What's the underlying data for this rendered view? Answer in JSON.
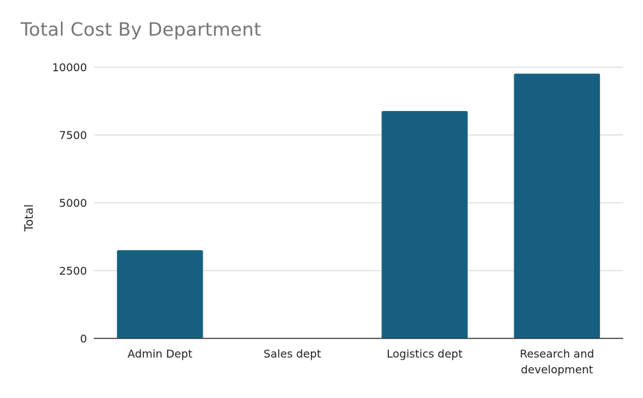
{
  "chart_data": {
    "type": "bar",
    "title": "Total Cost By Department",
    "xlabel": "",
    "ylabel": "Total",
    "categories": [
      "Admin Dept",
      "Sales dept",
      "Logistics dept",
      "Research and development"
    ],
    "category_lines": [
      [
        "Admin Dept"
      ],
      [
        "Sales dept"
      ],
      [
        "Logistics dept"
      ],
      [
        "Research and",
        "development"
      ]
    ],
    "values": [
      3250,
      0,
      8380,
      9760
    ],
    "ylim": [
      0,
      10000
    ],
    "yticks": [
      0,
      2500,
      5000,
      7500,
      10000
    ],
    "ytick_labels": [
      "0",
      "2500",
      "5000",
      "7500",
      "10000"
    ],
    "grid": true,
    "legend": "none",
    "bar_color": "#175f80",
    "grid_color": "#cccccc",
    "axis_color": "#333333"
  }
}
